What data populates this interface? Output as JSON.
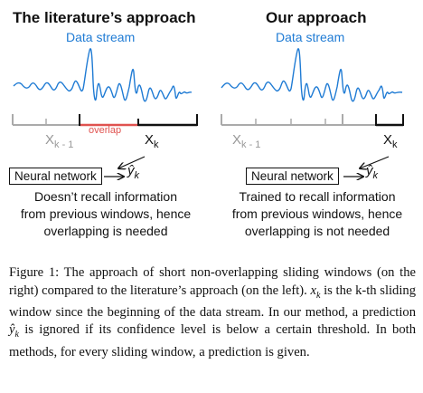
{
  "left_panel": {
    "title": "The literature’s approach",
    "stream_label": "Data stream",
    "prev_window": "X",
    "prev_window_sub": "k - 1",
    "overlap_label": "overlap",
    "cur_window": "X",
    "cur_window_sub": "k",
    "network_label": "Neural network",
    "prediction": "ŷ",
    "prediction_sub": "k",
    "description": [
      "Doesn’t recall information",
      "from previous windows, hence",
      "overlapping is needed"
    ]
  },
  "right_panel": {
    "title": "Our approach",
    "stream_label": "Data stream",
    "prev_window": "X",
    "prev_window_sub": "k - 1",
    "cur_window": "X",
    "cur_window_sub": "k",
    "network_label": "Neural network",
    "prediction": "ŷ",
    "prediction_sub": "k",
    "description": [
      "Trained to recall information",
      "from previous windows, hence",
      "overlapping is not needed"
    ]
  },
  "colors": {
    "stream": "#1f7bd4",
    "overlap": "#e0524f",
    "past_window": "#aaaaaa",
    "current_window": "#111111"
  },
  "caption": {
    "label": "Figure 1:",
    "part1": "The approach of short non-overlapping sliding windows (on the right) compared to the literature’s approach (on the left).",
    "math1": "x",
    "math1_sub": "k",
    "part2": "is the k-th sliding window since the beginning of the data stream. In our method, a prediction",
    "math2": "ŷ",
    "math2_sub": "k",
    "part3": "is ignored if its confidence level is below a certain threshold. In both methods, for every sliding window, a prediction is given."
  }
}
